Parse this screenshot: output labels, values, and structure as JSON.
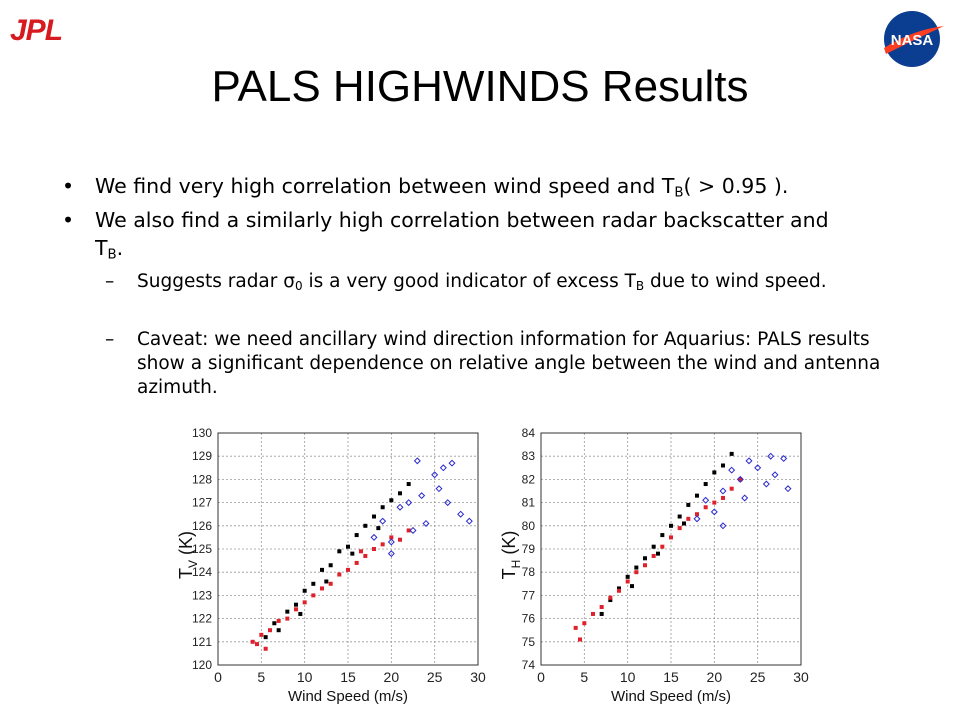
{
  "logos": {
    "left": "JPL",
    "right": "NASA"
  },
  "title": "PALS HIGHWINDS Results",
  "bullets": [
    {
      "level": 1,
      "parts": [
        "We find very high correlation between wind speed and T",
        {
          "sub": "B"
        },
        "( > 0.95 )."
      ]
    },
    {
      "level": 1,
      "parts": [
        "We also find a similarly high correlation between radar backscatter and T",
        {
          "sub": "B"
        },
        "."
      ]
    },
    {
      "level": 2,
      "parts": [
        "Suggests radar σ",
        {
          "sub": "0"
        },
        " is a very good indicator of excess T",
        {
          "sub": "B"
        },
        " due to wind speed."
      ]
    },
    {
      "level": 2,
      "parts": [
        "Caveat: we need ancillary wind direction information for Aquarius: PALS results show a significant dependence on relative angle between the wind and antenna azimuth."
      ]
    }
  ],
  "chart_data": [
    {
      "type": "scatter",
      "x_label": "Wind Speed (m/s)",
      "y_label": {
        "main": "T",
        "sub": "V",
        "unit": " (K)"
      },
      "xlim": [
        0,
        30
      ],
      "xticks": [
        0,
        5,
        10,
        15,
        20,
        25,
        30
      ],
      "ylim": [
        120,
        130
      ],
      "yticks": [
        120,
        121,
        122,
        123,
        124,
        125,
        126,
        127,
        128,
        129,
        130
      ],
      "grid": true,
      "series": [
        {
          "color": "#000000",
          "marker": "square",
          "x": [
            5.5,
            6.5,
            7,
            8,
            9,
            10,
            11,
            12,
            13,
            14,
            15,
            16,
            17,
            18,
            19,
            20,
            21,
            22,
            9.5,
            12.5,
            15.5,
            18.5
          ],
          "values": [
            121.2,
            121.8,
            121.5,
            122.3,
            122.6,
            123.2,
            123.5,
            124.1,
            124.3,
            124.9,
            125.1,
            125.6,
            126.0,
            126.4,
            126.8,
            127.1,
            127.4,
            127.8,
            122.2,
            123.6,
            124.8,
            125.9
          ]
        },
        {
          "color": "#e0202a",
          "marker": "square",
          "x": [
            4,
            4.5,
            5,
            6,
            7,
            8,
            9,
            10,
            11,
            12,
            13,
            14,
            15,
            16,
            17,
            18,
            19,
            20,
            21,
            22,
            5.5,
            16.5
          ],
          "values": [
            121.0,
            120.9,
            121.3,
            121.5,
            121.9,
            122.0,
            122.4,
            122.7,
            123.0,
            123.3,
            123.5,
            123.9,
            124.1,
            124.4,
            124.7,
            125.0,
            125.2,
            125.5,
            125.4,
            125.8,
            120.7,
            124.9
          ]
        },
        {
          "color": "#2a2ad0",
          "marker": "diamond",
          "x": [
            18,
            19,
            20,
            21,
            22,
            22.5,
            23,
            23.5,
            24,
            25,
            25.5,
            26,
            26.5,
            27,
            28,
            29,
            20
          ],
          "values": [
            125.5,
            126.2,
            125.3,
            126.8,
            127.0,
            125.8,
            128.8,
            127.3,
            126.1,
            128.2,
            127.6,
            128.5,
            127.0,
            128.7,
            126.5,
            126.2,
            124.8
          ]
        }
      ]
    },
    {
      "type": "scatter",
      "x_label": "Wind Speed (m/s)",
      "y_label": {
        "main": "T",
        "sub": "H",
        "unit": " (K)"
      },
      "xlim": [
        0,
        30
      ],
      "xticks": [
        0,
        5,
        10,
        15,
        20,
        25,
        30
      ],
      "ylim": [
        74,
        84
      ],
      "yticks": [
        74,
        75,
        76,
        77,
        78,
        79,
        80,
        81,
        82,
        83,
        84
      ],
      "grid": true,
      "series": [
        {
          "color": "#000000",
          "marker": "square",
          "x": [
            7,
            8,
            9,
            10,
            11,
            12,
            13,
            14,
            15,
            16,
            17,
            18,
            19,
            20,
            21,
            22,
            10.5,
            13.5,
            16.5
          ],
          "values": [
            76.2,
            76.8,
            77.3,
            77.8,
            78.2,
            78.6,
            79.1,
            79.6,
            80.0,
            80.4,
            80.9,
            81.3,
            81.8,
            82.3,
            82.6,
            83.1,
            77.4,
            78.8,
            80.1
          ]
        },
        {
          "color": "#e0202a",
          "marker": "square",
          "x": [
            4,
            5,
            6,
            7,
            8,
            9,
            10,
            11,
            12,
            13,
            14,
            15,
            16,
            17,
            18,
            19,
            20,
            21,
            22,
            23,
            4.5
          ],
          "values": [
            75.6,
            75.8,
            76.2,
            76.5,
            76.9,
            77.2,
            77.6,
            78.0,
            78.3,
            78.7,
            79.1,
            79.5,
            79.9,
            80.3,
            80.5,
            80.8,
            81.0,
            81.2,
            81.6,
            82.0,
            75.1
          ]
        },
        {
          "color": "#2a2ad0",
          "marker": "diamond",
          "x": [
            18,
            19,
            20,
            21,
            22,
            23,
            23.5,
            24,
            25,
            26,
            26.5,
            27,
            28,
            28.5,
            21
          ],
          "values": [
            80.3,
            81.1,
            80.6,
            81.5,
            82.4,
            82.0,
            81.2,
            82.8,
            82.5,
            81.8,
            83.0,
            82.2,
            82.9,
            81.6,
            80.0
          ]
        }
      ]
    }
  ]
}
